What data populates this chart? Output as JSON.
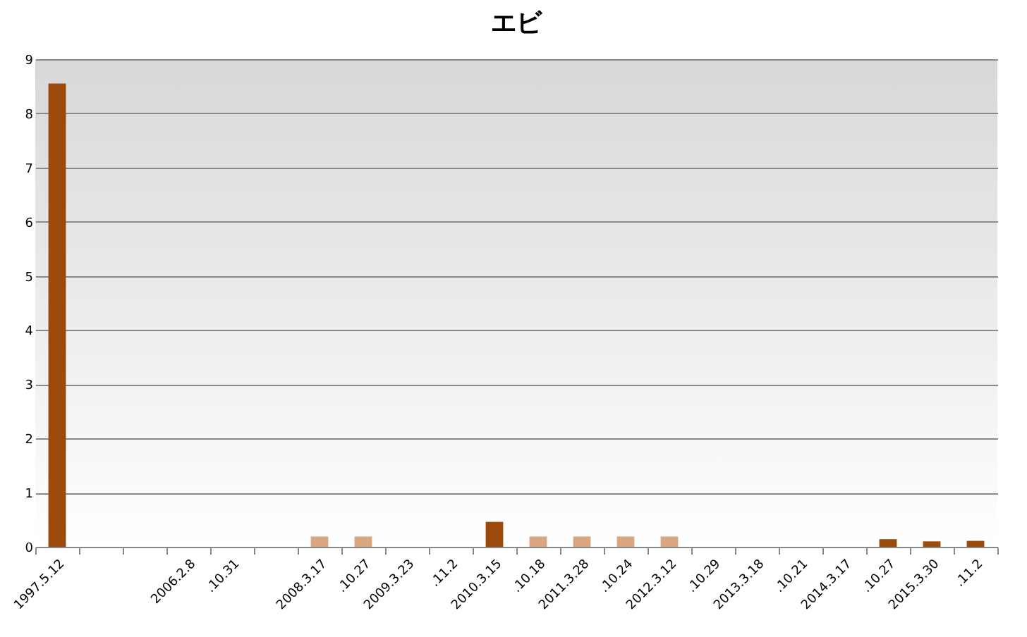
{
  "chart_data": {
    "type": "bar",
    "title": "エビ",
    "categories": [
      "1997.5.12",
      null,
      null,
      "2006.2.8",
      ".10.31",
      null,
      "2008.3.17",
      ".10.27",
      "2009.3.23",
      ".11.2",
      "2010.3.15",
      ".10.18",
      "2011.3.28",
      ".10.24",
      "2012.3.12",
      ".10.29",
      "2013.3.18",
      ".10.21",
      "2014.3.17",
      ".10.27",
      "2015.3.30",
      ".11.2"
    ],
    "values": [
      8.55,
      null,
      null,
      null,
      null,
      null,
      0.19,
      0.19,
      null,
      null,
      0.46,
      0.19,
      0.19,
      0.19,
      0.19,
      null,
      null,
      null,
      null,
      0.14,
      0.1,
      0.11
    ],
    "colors": [
      "#9c4a0c",
      "#9c4a0c",
      "#9c4a0c",
      "#9c4a0c",
      "#9c4a0c",
      "#9c4a0c",
      "#d9a680",
      "#d9a680",
      "#9c4a0c",
      "#9c4a0c",
      "#9c4a0c",
      "#d9a680",
      "#d9a680",
      "#d9a680",
      "#d9a680",
      "#9c4a0c",
      "#9c4a0c",
      "#9c4a0c",
      "#9c4a0c",
      "#9c4a0c",
      "#9c4a0c",
      "#9c4a0c"
    ],
    "ylim": [
      0,
      9
    ],
    "yticks": [
      0,
      1,
      2,
      3,
      4,
      5,
      6,
      7,
      8,
      9
    ],
    "grid": "y"
  }
}
